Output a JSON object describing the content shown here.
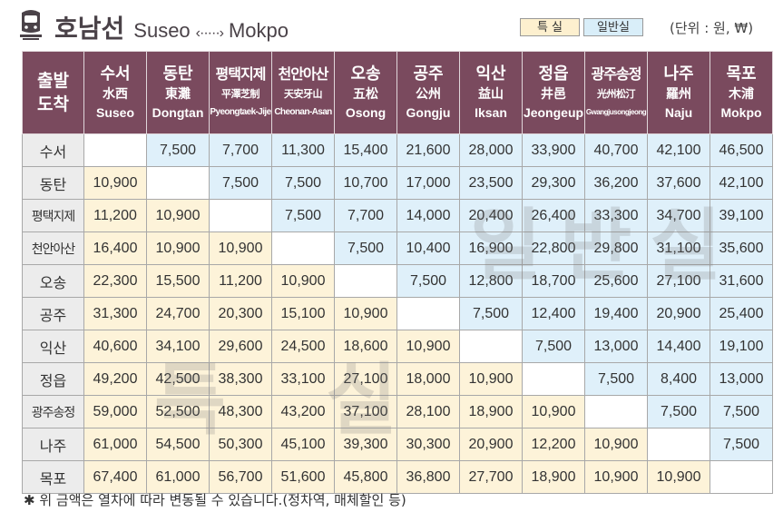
{
  "header": {
    "title_ko": "호남선",
    "route_from": "Suseo",
    "route_arrow": "‹·····›",
    "route_to": "Mokpo",
    "legend_special": "특 실",
    "legend_general": "일반실",
    "unit": "(단위 : 원, ₩)"
  },
  "table": {
    "corner_top": "출발",
    "corner_bottom": "도착",
    "stations": [
      {
        "ko": "수서",
        "hanja": "水西",
        "en": "Suseo"
      },
      {
        "ko": "동탄",
        "hanja": "東灘",
        "en": "Dongtan"
      },
      {
        "ko": "평택지제",
        "hanja": "平澤芝制",
        "en": "Pyeongtaek-Jije"
      },
      {
        "ko": "천안아산",
        "hanja": "天安牙山",
        "en": "Cheonan-Asan"
      },
      {
        "ko": "오송",
        "hanja": "五松",
        "en": "Osong"
      },
      {
        "ko": "공주",
        "hanja": "公州",
        "en": "Gongju"
      },
      {
        "ko": "익산",
        "hanja": "益山",
        "en": "Iksan"
      },
      {
        "ko": "정읍",
        "hanja": "井邑",
        "en": "Jeongeup"
      },
      {
        "ko": "광주송정",
        "hanja": "光州松汀",
        "en": "Gwangjusongjeong"
      },
      {
        "ko": "나주",
        "hanja": "羅州",
        "en": "Naju"
      },
      {
        "ko": "목포",
        "hanja": "木浦",
        "en": "Mokpo"
      }
    ],
    "rows": [
      [
        "",
        "7,500",
        "7,700",
        "11,300",
        "15,400",
        "21,600",
        "28,000",
        "33,900",
        "40,700",
        "42,100",
        "46,500"
      ],
      [
        "10,900",
        "",
        "7,500",
        "7,500",
        "10,700",
        "17,000",
        "23,500",
        "29,300",
        "36,200",
        "37,600",
        "42,100"
      ],
      [
        "11,200",
        "10,900",
        "",
        "7,500",
        "7,700",
        "14,000",
        "20,400",
        "26,400",
        "33,300",
        "34,700",
        "39,100"
      ],
      [
        "16,400",
        "10,900",
        "10,900",
        "",
        "7,500",
        "10,400",
        "16,900",
        "22,800",
        "29,800",
        "31,100",
        "35,600"
      ],
      [
        "22,300",
        "15,500",
        "11,200",
        "10,900",
        "",
        "7,500",
        "12,800",
        "18,700",
        "25,600",
        "27,100",
        "31,600"
      ],
      [
        "31,300",
        "24,700",
        "20,300",
        "15,100",
        "10,900",
        "",
        "7,500",
        "12,400",
        "19,400",
        "20,900",
        "25,400"
      ],
      [
        "40,600",
        "34,100",
        "29,600",
        "24,500",
        "18,600",
        "10,900",
        "",
        "7,500",
        "13,000",
        "14,400",
        "19,100"
      ],
      [
        "49,200",
        "42,500",
        "38,300",
        "33,100",
        "27,100",
        "18,000",
        "10,900",
        "",
        "7,500",
        "8,400",
        "13,000"
      ],
      [
        "59,000",
        "52,500",
        "48,300",
        "43,200",
        "37,100",
        "28,100",
        "18,900",
        "10,900",
        "",
        "7,500",
        "7,500"
      ],
      [
        "61,000",
        "54,500",
        "50,300",
        "45,100",
        "39,300",
        "30,300",
        "20,900",
        "12,200",
        "10,900",
        "",
        "7,500"
      ],
      [
        "67,400",
        "61,000",
        "56,700",
        "51,600",
        "45,800",
        "36,800",
        "27,700",
        "18,900",
        "10,900",
        "10,900",
        ""
      ]
    ]
  },
  "watermarks": {
    "general": "일반실",
    "special": "특 실"
  },
  "footnote": "✱ 위 금액은 열차에 따라 변동될 수 있습니다.(정차역, 매체할인 등)",
  "colors": {
    "header_bg": "#7a4a5e",
    "special_bg": "#fdf3d9",
    "general_bg": "#dff0fa",
    "row_header_bg": "#ececec"
  }
}
